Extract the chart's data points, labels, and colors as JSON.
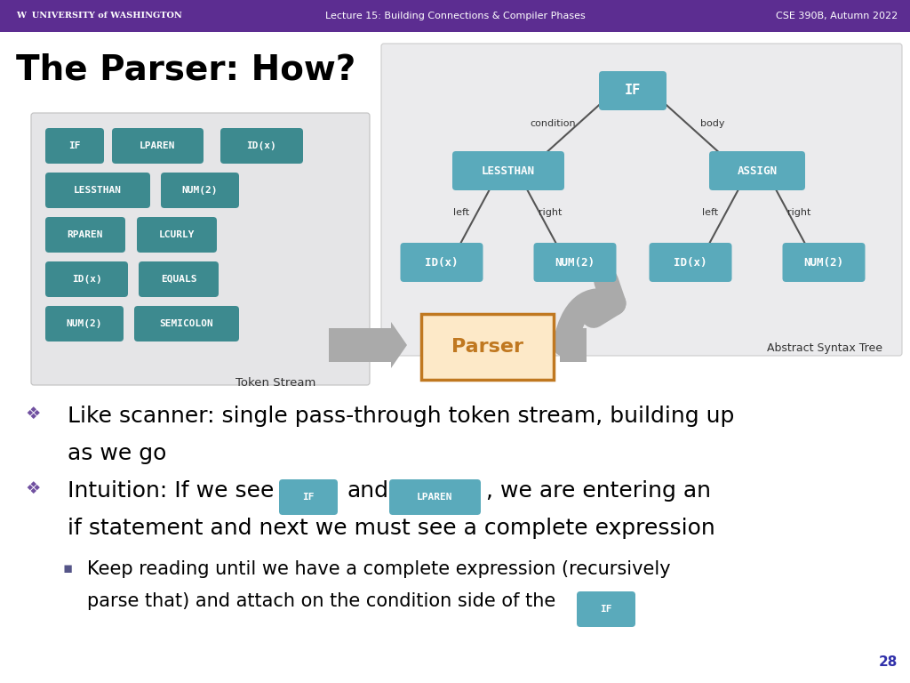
{
  "title": "The Parser: How?",
  "header_bg": "#5c2d91",
  "header_text": "Lecture 15: Building Connections & Compiler Phases",
  "header_right": "CSE 390B, Autumn 2022",
  "slide_bg": "#ffffff",
  "teal_token": "#3d8a8f",
  "teal_ast": "#5aaabb",
  "token_box_bg": "#e8e8e8",
  "ast_box_bg": "#e8eaec",
  "parser_fill": "#fde9c8",
  "parser_border": "#c07820",
  "arrow_gray": "#aaaaaa",
  "bullet_diamond_color": "#7050a0",
  "sub_bullet_color": "#555588",
  "page_num_color": "#3030aa",
  "page_number": "28",
  "black": "#000000",
  "dark_gray": "#333333"
}
